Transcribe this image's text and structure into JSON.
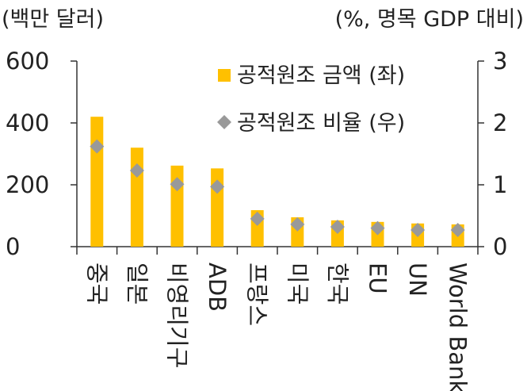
{
  "chart_data": {
    "type": "bar",
    "left_axis_unit": "(백만 달러)",
    "right_axis_unit": "(%, 명목 GDP 대비)",
    "categories": [
      "중국",
      "일본",
      "비영리기구",
      "ADB",
      "프랑스",
      "미국",
      "한국",
      "EU",
      "UN",
      "World Bank"
    ],
    "series": [
      {
        "name": "공적원조 금액 (좌)",
        "type": "bar",
        "axis": "left",
        "color": "#FFC000",
        "values": [
          420,
          320,
          262,
          253,
          118,
          95,
          85,
          80,
          75,
          72
        ]
      },
      {
        "name": "공적원조 비율 (우)",
        "type": "scatter",
        "marker": "diamond",
        "axis": "right",
        "color": "#999999",
        "values": [
          1.62,
          1.23,
          1.01,
          0.97,
          0.45,
          0.36,
          0.32,
          0.3,
          0.27,
          0.27
        ]
      }
    ],
    "left_axis": {
      "ylim": [
        0,
        600
      ],
      "ticks": [
        0,
        200,
        400,
        600
      ]
    },
    "right_axis": {
      "ylim": [
        0,
        3
      ],
      "ticks": [
        0,
        1,
        2,
        3
      ]
    },
    "legend_position": "top-center",
    "grid": false
  }
}
